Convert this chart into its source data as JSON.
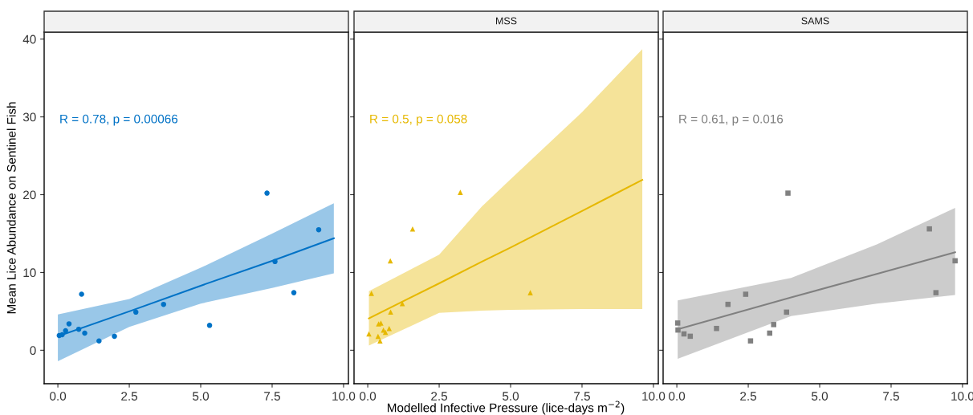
{
  "chart_data": [
    {
      "type": "scatter",
      "ylabel": "Mean Lice Abundance on Sentinel Fish",
      "xlim": [
        -0.48,
        10.17
      ],
      "ylim": [
        -4.3,
        40.9
      ],
      "xticks": [
        {
          "value": 0,
          "label": "0.0"
        },
        {
          "value": 2.5,
          "label": "2.5"
        },
        {
          "value": 5,
          "label": "5.0"
        },
        {
          "value": 7.5,
          "label": "7.5"
        },
        {
          "value": 10,
          "label": "10.0"
        }
      ],
      "yticks": [
        0,
        10,
        20,
        30,
        40
      ],
      "grid": false,
      "annotations": [
        "R = 0.78, p = 0.00066"
      ],
      "series": [
        {
          "marker": "circle",
          "color": "#0072c6",
          "x": [
            0.05,
            0.15,
            0.27,
            0.39,
            0.73,
            0.83,
            0.94,
            1.44,
            1.98,
            2.73,
            3.7,
            5.31,
            7.32,
            7.6,
            8.26,
            9.13
          ],
          "values": [
            1.9,
            2.0,
            2.5,
            3.4,
            2.7,
            7.2,
            2.2,
            1.2,
            1.8,
            4.9,
            5.9,
            3.2,
            20.2,
            11.4,
            7.4,
            15.5
          ]
        },
        {
          "type": "line",
          "color": "#0072c6",
          "x": [
            0,
            2.5,
            5,
            7.5,
            9.66
          ],
          "values": [
            1.8,
            5.0,
            8.3,
            11.5,
            14.4
          ],
          "lower": [
            -1.4,
            3.0,
            6.0,
            8.0,
            9.9
          ],
          "upper": [
            4.6,
            6.6,
            10.6,
            15.0,
            18.9
          ]
        }
      ]
    },
    {
      "type": "scatter",
      "title": "MSS",
      "xlabel": "Modelled Infective Pressure (lice-days m$^{−2}$)",
      "xlim": [
        -0.48,
        10.17
      ],
      "ylim": [
        -4.3,
        40.9
      ],
      "xticks": [
        {
          "value": 0,
          "label": "0.0"
        },
        {
          "value": 2.5,
          "label": "2.5"
        },
        {
          "value": 5,
          "label": "5.0"
        },
        {
          "value": 7.5,
          "label": "7.5"
        },
        {
          "value": 10,
          "label": "10.0"
        }
      ],
      "yticks": [
        0,
        10,
        20,
        30,
        40
      ],
      "grid": false,
      "tick_labels": "x",
      "annotations": [
        "R = 0.5, p = 0.058"
      ],
      "series": [
        {
          "marker": "triangle",
          "color": "#e6b800",
          "x": [
            0.04,
            0.13,
            0.36,
            0.43,
            0.38,
            0.46,
            0.55,
            0.62,
            0.75,
            0.79,
            0.8,
            1.21,
            1.57,
            3.24,
            5.69
          ],
          "values": [
            2.1,
            7.3,
            1.8,
            1.2,
            3.4,
            3.5,
            2.6,
            2.3,
            2.8,
            11.5,
            4.9,
            6.0,
            15.6,
            20.3,
            7.4
          ]
        },
        {
          "type": "line",
          "color": "#e6b800",
          "x": [
            0.04,
            2.5,
            4,
            5,
            7.5,
            9.61
          ],
          "values": [
            4.1,
            8.6,
            11.4,
            13.2,
            17.9,
            21.9
          ],
          "lower": [
            0.6,
            4.8,
            5.1,
            5.2,
            5.3,
            5.3
          ],
          "upper": [
            7.6,
            12.3,
            18.5,
            22.0,
            30.6,
            38.7
          ]
        }
      ]
    },
    {
      "type": "scatter",
      "title": "SAMS",
      "xlim": [
        -0.48,
        10.17
      ],
      "ylim": [
        -4.3,
        40.9
      ],
      "xticks": [
        {
          "value": 0,
          "label": "0.0"
        },
        {
          "value": 2.5,
          "label": "2.5"
        },
        {
          "value": 5,
          "label": "5.0"
        },
        {
          "value": 7.5,
          "label": "7.5"
        },
        {
          "value": 10,
          "label": "10.0"
        }
      ],
      "yticks": [
        0,
        10,
        20,
        30,
        40
      ],
      "grid": false,
      "tick_labels": "x",
      "annotations": [
        "R = 0.61, p = 0.016"
      ],
      "series": [
        {
          "marker": "square",
          "color": "#808080",
          "x": [
            0.03,
            0.04,
            0.25,
            0.47,
            1.39,
            1.79,
            2.41,
            2.58,
            3.25,
            3.39,
            3.84,
            3.89,
            8.84,
            9.07,
            9.74
          ],
          "values": [
            3.5,
            2.6,
            2.1,
            1.8,
            2.8,
            5.9,
            7.2,
            1.2,
            2.2,
            3.3,
            4.9,
            20.2,
            15.6,
            7.4,
            11.5
          ]
        },
        {
          "type": "line",
          "color": "#808080",
          "x": [
            0.03,
            4,
            7,
            9.74
          ],
          "values": [
            2.7,
            6.8,
            9.8,
            12.6
          ],
          "lower": [
            -1.1,
            4.4,
            6.0,
            7.1
          ],
          "upper": [
            6.4,
            9.3,
            13.6,
            18.3
          ]
        }
      ]
    }
  ]
}
